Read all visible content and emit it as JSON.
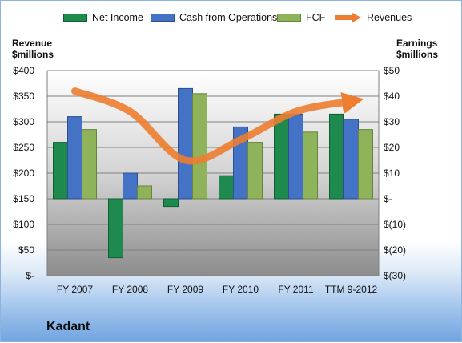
{
  "chart_data": {
    "type": "bar",
    "categories": [
      "FY 2007",
      "FY 2008",
      "FY 2009",
      "FY 2010",
      "FY 2011",
      "TTM 9-2012"
    ],
    "series": [
      {
        "name": "Net Income",
        "axis": "right",
        "values": [
          22,
          -23,
          -3,
          9,
          33,
          33
        ],
        "color": "#1e8a4e"
      },
      {
        "name": "Cash from Operations",
        "axis": "right",
        "values": [
          32,
          10,
          43,
          28,
          33,
          31
        ],
        "color": "#4472c4"
      },
      {
        "name": "FCF",
        "axis": "right",
        "values": [
          27,
          5,
          41,
          22,
          26,
          27
        ],
        "color": "#8fb35a"
      }
    ],
    "line_series": {
      "name": "Revenues",
      "axis": "left",
      "values": [
        360,
        320,
        225,
        265,
        320,
        340
      ],
      "color": "#ed7d31"
    },
    "ylabel": "Revenue $millions",
    "ylabel_right": "Earnings $millions",
    "ylim": [
      0,
      400
    ],
    "ylim_right": [
      -30,
      50
    ],
    "yticks": [
      "$-",
      "$50",
      "$100",
      "$150",
      "$200",
      "$250",
      "$300",
      "$350",
      "$400"
    ],
    "yticks_right": [
      "$(30)",
      "$(20)",
      "$(10)",
      "$-",
      "$10",
      "$20",
      "$30",
      "$40",
      "$50"
    ],
    "grid": true,
    "legend_position": "top"
  },
  "legend": {
    "net_income": "Net Income",
    "cash_ops": "Cash from Operations",
    "fcf": "FCF",
    "revenues": "Revenues"
  },
  "axis_titles": {
    "left_line1": "Revenue",
    "left_line2": "$millions",
    "right_line1": "Earnings",
    "right_line2": "$millions"
  },
  "company": "Kadant"
}
